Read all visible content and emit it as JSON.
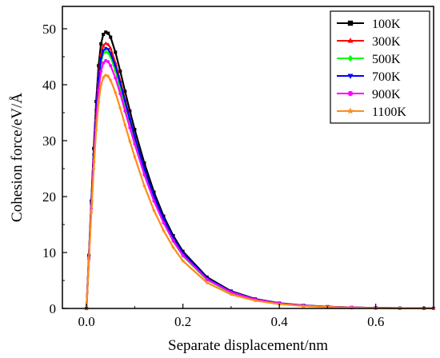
{
  "chart_data": {
    "type": "line",
    "title": "",
    "xlabel": "Separate displacement/nm",
    "ylabel": "Cohesion force/eV/Å",
    "xlim": [
      -0.05,
      0.72
    ],
    "ylim": [
      0,
      54
    ],
    "xticks": [
      0.0,
      0.2,
      0.4,
      0.6
    ],
    "xtick_labels": [
      "0.0",
      "0.2",
      "0.4",
      "0.6"
    ],
    "yticks": [
      0,
      10,
      20,
      30,
      40,
      50
    ],
    "ytick_labels": [
      "0",
      "10",
      "20",
      "30",
      "40",
      "50"
    ],
    "grid": false,
    "legend_position": "top-right",
    "x": [
      0.0,
      0.005,
      0.01,
      0.015,
      0.02,
      0.025,
      0.03,
      0.035,
      0.04,
      0.045,
      0.05,
      0.06,
      0.07,
      0.08,
      0.09,
      0.1,
      0.12,
      0.14,
      0.16,
      0.18,
      0.2,
      0.25,
      0.3,
      0.35,
      0.4,
      0.45,
      0.5,
      0.55,
      0.6,
      0.65,
      0.7,
      0.72
    ],
    "series": [
      {
        "name": "100K",
        "color": "#000000",
        "marker": "square",
        "values": [
          0,
          9.5,
          19.2,
          28.6,
          37.0,
          43.4,
          47.3,
          49.0,
          49.4,
          49.2,
          48.5,
          45.8,
          42.4,
          38.8,
          35.3,
          32.0,
          26.0,
          20.8,
          16.5,
          13.0,
          10.2,
          5.6,
          3.1,
          1.7,
          0.95,
          0.55,
          0.32,
          0.18,
          0.11,
          0.06,
          0.03,
          0.02
        ]
      },
      {
        "name": "300K",
        "color": "#ff0000",
        "marker": "triangle-up",
        "values": [
          0,
          9.3,
          18.8,
          27.7,
          35.8,
          41.7,
          45.4,
          47.0,
          47.4,
          47.2,
          46.5,
          43.9,
          40.7,
          37.3,
          33.9,
          30.7,
          24.9,
          19.9,
          15.8,
          12.4,
          9.7,
          5.3,
          2.9,
          1.6,
          0.88,
          0.5,
          0.29,
          0.17,
          0.1,
          0.05,
          0.03,
          0.02
        ]
      },
      {
        "name": "500K",
        "color": "#00ff00",
        "marker": "diamond",
        "values": [
          0,
          9.1,
          18.4,
          27.0,
          34.8,
          40.4,
          44.0,
          45.6,
          45.9,
          45.7,
          45.0,
          42.5,
          39.4,
          36.1,
          32.8,
          29.7,
          24.1,
          19.3,
          15.3,
          12.0,
          9.4,
          5.1,
          2.8,
          1.5,
          0.84,
          0.48,
          0.28,
          0.16,
          0.09,
          0.05,
          0.03,
          0.02
        ]
      },
      {
        "name": "700K",
        "color": "#0000ff",
        "marker": "triangle-down",
        "values": [
          0,
          9.2,
          18.6,
          27.4,
          35.3,
          41.0,
          44.6,
          46.1,
          46.5,
          46.3,
          45.6,
          43.3,
          40.3,
          37.0,
          33.8,
          30.7,
          25.0,
          20.1,
          16.0,
          12.6,
          9.9,
          5.4,
          3.0,
          1.65,
          0.92,
          0.52,
          0.3,
          0.18,
          0.1,
          0.06,
          0.03,
          0.02
        ]
      },
      {
        "name": "900K",
        "color": "#ff00ff",
        "marker": "circle",
        "values": [
          0,
          8.9,
          17.9,
          26.2,
          33.6,
          39.0,
          42.4,
          43.9,
          44.3,
          44.1,
          43.4,
          41.2,
          38.4,
          35.3,
          32.3,
          29.4,
          23.9,
          19.2,
          15.3,
          12.1,
          9.5,
          5.2,
          2.9,
          1.6,
          0.9,
          0.5,
          0.29,
          0.17,
          0.1,
          0.05,
          0.03,
          0.02
        ]
      },
      {
        "name": "1100K",
        "color": "#ff8c1a",
        "marker": "star",
        "values": [
          0,
          8.6,
          17.2,
          25.0,
          31.9,
          36.8,
          40.0,
          41.3,
          41.7,
          41.5,
          40.8,
          38.6,
          35.8,
          32.8,
          29.9,
          27.1,
          21.9,
          17.5,
          13.9,
          10.9,
          8.5,
          4.6,
          2.5,
          1.4,
          0.78,
          0.44,
          0.25,
          0.14,
          0.08,
          0.04,
          0.02,
          0.01
        ]
      }
    ]
  }
}
